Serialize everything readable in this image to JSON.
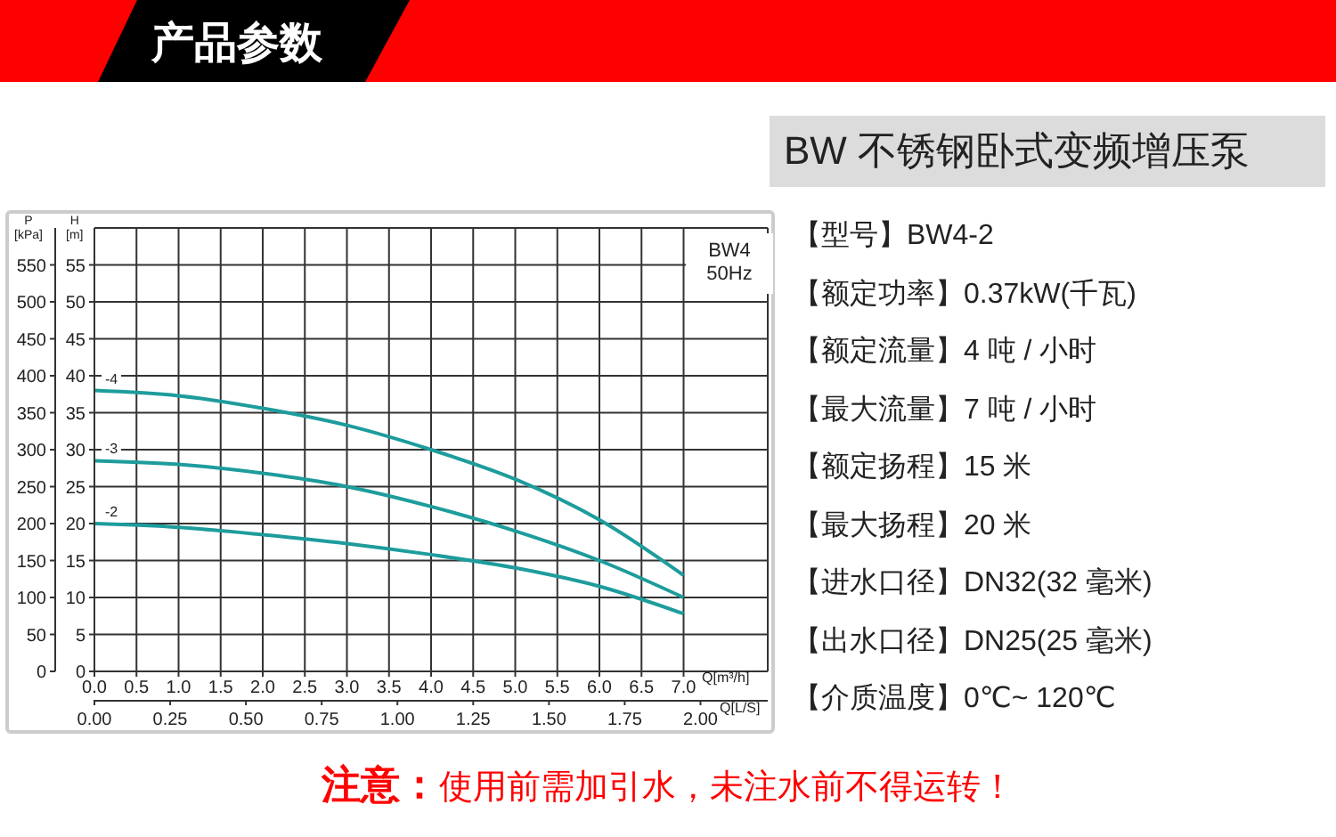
{
  "chart_data": {
    "type": "line",
    "title": "产品参数",
    "subtitle": "BW 不锈钢卧式变频增压泵",
    "xlabel": "Q[m³/h]",
    "x2label": "Q[L/S]",
    "ylabel": "H [m]",
    "y2label": "P [kPa]",
    "xlim": [
      0,
      8
    ],
    "xticks": [
      {
        "value": 0,
        "label": "0.0"
      },
      0.5,
      {
        "value": 1,
        "label": "1.0"
      },
      1.5,
      {
        "value": 2,
        "label": "2.0"
      },
      2.5,
      {
        "value": 3,
        "label": "3.0"
      },
      3.5,
      {
        "value": 4,
        "label": "4.0"
      },
      4.5,
      {
        "value": 5,
        "label": "5.0"
      },
      5.5,
      {
        "value": 6,
        "label": "6.0"
      },
      6.5,
      {
        "value": 7,
        "label": "7.0"
      }
    ],
    "x2lim": [
      0,
      2.222
    ],
    "x2ticks": [
      {
        "value": 0,
        "label": "0.00"
      },
      0.25,
      {
        "value": 0.5,
        "label": "0.50"
      },
      0.75,
      {
        "value": 1,
        "label": "1.00"
      },
      1.25,
      {
        "value": 1.5,
        "label": "1.50"
      },
      1.75,
      {
        "value": 2,
        "label": "2.00"
      }
    ],
    "ylim": [
      0,
      60
    ],
    "yticks": [
      0,
      5,
      10,
      15,
      20,
      25,
      30,
      35,
      40,
      45,
      50,
      55
    ],
    "y2lim": [
      0,
      600
    ],
    "y2ticks": [
      0,
      50,
      100,
      150,
      200,
      250,
      300,
      350,
      400,
      450,
      500,
      550
    ],
    "x": [
      0,
      1,
      2,
      3,
      4,
      5,
      6,
      7
    ],
    "series": [
      {
        "name": "-4",
        "color": "#1e9c9c",
        "values": [
          38,
          37.3,
          35.6,
          33.3,
          30,
          26,
          20.5,
          13
        ]
      },
      {
        "name": "-3",
        "color": "#1e9c9c",
        "values": [
          28.5,
          28,
          26.8,
          25,
          22.3,
          19,
          15,
          10
        ]
      },
      {
        "name": "-2",
        "color": "#1e9c9c",
        "values": [
          20,
          19.5,
          18.5,
          17.3,
          15.8,
          14,
          11.5,
          7.8
        ]
      }
    ],
    "grid": true,
    "legend": false,
    "marker": "none",
    "line_style": "solid",
    "annotations": [
      "BW4 50Hz",
      "【型号】BW4-2",
      "【额定功率】0.37kW(千瓦)",
      "【额定流量】4 吨 / 小时",
      "【最大流量】7 吨 / 小时",
      "【额定扬程】15 米",
      "【最大扬程】20 米",
      "【进水口径】DN32(32 毫米)",
      "【出水口径】DN25(25  毫米)",
      "【介质温度】0℃~ 120℃",
      "注意：",
      "使用前需加引水，未注水前不得运转！"
    ]
  }
}
